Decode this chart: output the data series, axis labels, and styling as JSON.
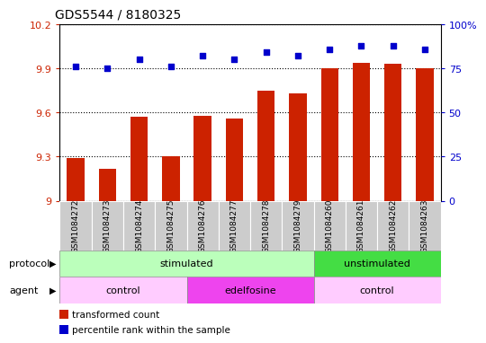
{
  "title": "GDS5544 / 8180325",
  "samples": [
    "GSM1084272",
    "GSM1084273",
    "GSM1084274",
    "GSM1084275",
    "GSM1084276",
    "GSM1084277",
    "GSM1084278",
    "GSM1084279",
    "GSM1084260",
    "GSM1084261",
    "GSM1084262",
    "GSM1084263"
  ],
  "bar_values": [
    9.29,
    9.22,
    9.57,
    9.3,
    9.58,
    9.56,
    9.75,
    9.73,
    9.9,
    9.94,
    9.93,
    9.9
  ],
  "dot_values": [
    76,
    75,
    80,
    76,
    82,
    80,
    84,
    82,
    86,
    88,
    88,
    86
  ],
  "ylim_left": [
    9.0,
    10.2
  ],
  "ylim_right": [
    0,
    100
  ],
  "yticks_left": [
    9.0,
    9.3,
    9.6,
    9.9,
    10.2
  ],
  "yticks_right": [
    0,
    25,
    50,
    75,
    100
  ],
  "yticklabels_left": [
    "9",
    "9.3",
    "9.6",
    "9.9",
    "10.2"
  ],
  "yticklabels_right": [
    "0",
    "25",
    "50",
    "75",
    "100%"
  ],
  "bar_color": "#cc2200",
  "dot_color": "#0000cc",
  "bg_color": "#ffffff",
  "protocol_groups": [
    {
      "label": "stimulated",
      "start": 0,
      "end": 8,
      "color": "#bbffbb"
    },
    {
      "label": "unstimulated",
      "start": 8,
      "end": 12,
      "color": "#44dd44"
    }
  ],
  "agent_groups": [
    {
      "label": "control",
      "start": 0,
      "end": 4,
      "color": "#ffccff"
    },
    {
      "label": "edelfosine",
      "start": 4,
      "end": 8,
      "color": "#ee44ee"
    },
    {
      "label": "control",
      "start": 8,
      "end": 12,
      "color": "#ffccff"
    }
  ],
  "legend_bar_label": "transformed count",
  "legend_dot_label": "percentile rank within the sample",
  "protocol_label": "protocol",
  "agent_label": "agent"
}
